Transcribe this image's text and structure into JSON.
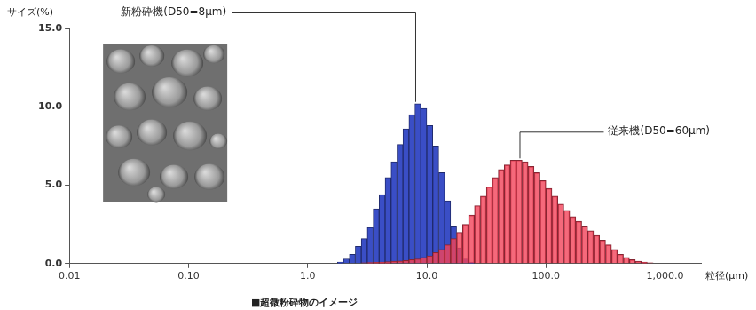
{
  "chart_data": {
    "type": "histogram",
    "y_label": "サイズ(%)",
    "x_label": "粒径(μm)",
    "caption": "■超微粉砕物のイメージ",
    "log": "x",
    "grid": false,
    "xlim": [
      0.01,
      2000
    ],
    "xticks": [
      0.01,
      {
        "value": 0.1,
        "label": "0.10"
      },
      {
        "value": 1,
        "label": "1.0"
      },
      {
        "value": 10,
        "label": "10.0"
      },
      {
        "value": 100,
        "label": "100.0"
      },
      {
        "value": 1000,
        "label": "1,000.0"
      }
    ],
    "ylim": [
      0,
      15
    ],
    "yticks": [
      {
        "value": 0,
        "label": "0.0"
      },
      {
        "value": 5,
        "label": "5.0"
      },
      {
        "value": 10,
        "label": "10.0"
      },
      {
        "value": 15,
        "label": "15.0"
      }
    ],
    "bins": [
      1.585,
      1.778,
      1.995,
      2.239,
      2.512,
      2.818,
      3.162,
      3.548,
      3.981,
      4.467,
      5.012,
      5.623,
      6.31,
      7.079,
      7.943,
      8.913,
      10,
      11.22,
      12.59,
      14.13,
      15.85,
      17.78,
      19.95,
      22.39,
      25.12,
      28.18,
      31.62,
      35.48,
      39.81,
      44.67,
      50.12,
      56.23,
      63.1,
      70.79,
      79.43,
      89.13,
      100,
      112.2,
      125.9,
      141.3,
      158.5,
      177.8,
      199.5,
      223.9,
      251.2,
      281.8,
      316.2,
      354.8,
      398.1,
      446.7,
      501.2,
      562.3,
      631,
      707.9,
      794.3,
      891.3,
      1000,
      1122,
      1259,
      1413,
      1585
    ],
    "series": [
      {
        "color": "#3a4ec6",
        "values": [
          0,
          0.1,
          0.3,
          0.6,
          1.1,
          1.6,
          2.3,
          3.5,
          4.4,
          5.5,
          6.5,
          7.6,
          8.6,
          9.5,
          10.2,
          9.9,
          8.8,
          7.5,
          5.8,
          4.0,
          2.4,
          1.0,
          0.3,
          0.1,
          0,
          0,
          0,
          0,
          0,
          0,
          0,
          0,
          0,
          0,
          0,
          0,
          0,
          0,
          0,
          0,
          0,
          0,
          0,
          0,
          0,
          0,
          0,
          0,
          0,
          0,
          0,
          0,
          0,
          0,
          0,
          0,
          0,
          0,
          0,
          0
        ]
      },
      {
        "color": "#f2435a",
        "values": [
          0,
          0,
          0,
          0,
          0,
          0.05,
          0.07,
          0.08,
          0.1,
          0.12,
          0.15,
          0.17,
          0.2,
          0.25,
          0.3,
          0.4,
          0.5,
          0.7,
          0.9,
          1.2,
          1.6,
          2.0,
          2.5,
          3.1,
          3.7,
          4.3,
          4.9,
          5.5,
          6.0,
          6.3,
          6.6,
          6.6,
          6.5,
          6.2,
          5.8,
          5.3,
          4.8,
          4.3,
          3.8,
          3.4,
          3.0,
          2.7,
          2.4,
          2.1,
          1.8,
          1.5,
          1.2,
          0.9,
          0.6,
          0.4,
          0.25,
          0.15,
          0.1,
          0.05,
          0,
          0,
          0,
          0,
          0,
          0
        ]
      }
    ],
    "annotations": [
      {
        "text": "新粉砕機(D50=8μm)",
        "x": 8,
        "y": 10.2
      },
      {
        "text": "従来機(D50=60μm)",
        "x": 60,
        "y": 6.6
      }
    ]
  }
}
